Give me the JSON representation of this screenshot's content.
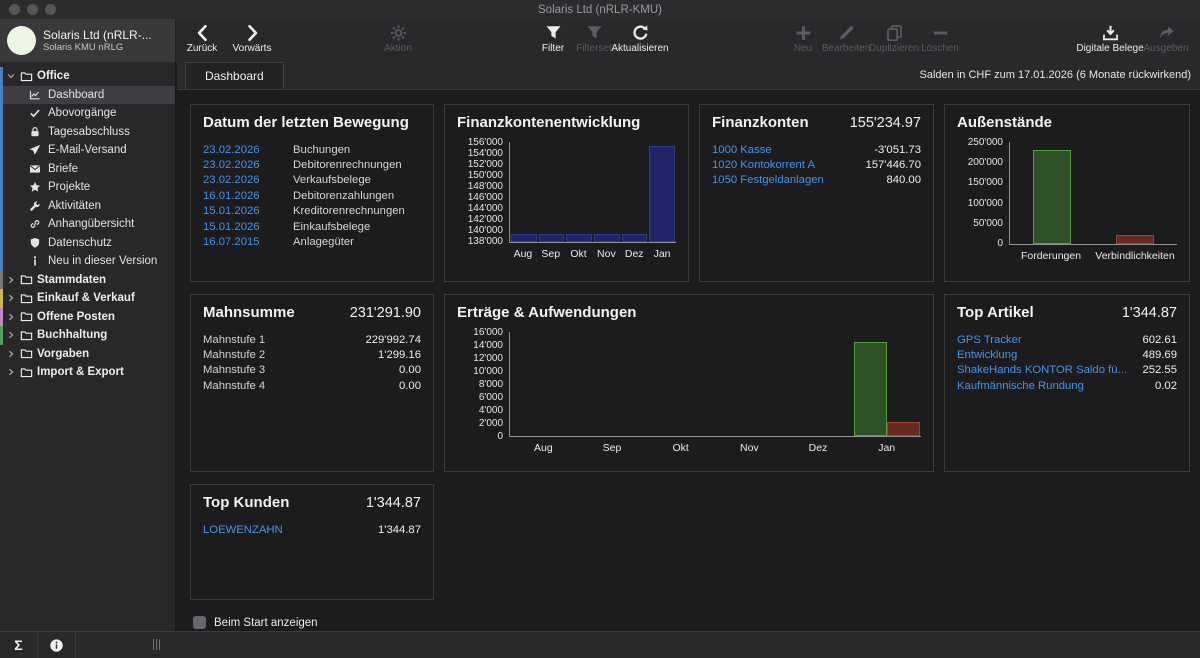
{
  "window": {
    "title": "Solaris Ltd  (nRLR-KMU)"
  },
  "header": {
    "company": "Solaris Ltd  (nRLR-...",
    "company_sub": "Solaris KMU nRLG"
  },
  "toolbar": {
    "items": [
      {
        "label": "Zurück",
        "icon": "back",
        "enabled": true
      },
      {
        "label": "Vorwärts",
        "icon": "forward",
        "enabled": true
      },
      {
        "label": "Aktion",
        "icon": "gear",
        "enabled": false
      },
      {
        "label": "Filter",
        "icon": "funnel",
        "enabled": true
      },
      {
        "label": "Filterset",
        "icon": "funnel",
        "enabled": false
      },
      {
        "label": "Aktualisieren",
        "icon": "refresh",
        "enabled": true
      },
      {
        "label": "Neu",
        "icon": "plus",
        "enabled": false
      },
      {
        "label": "Bearbeiten",
        "icon": "pencil",
        "enabled": false
      },
      {
        "label": "Duplizieren",
        "icon": "copy",
        "enabled": false
      },
      {
        "label": "Löschen",
        "icon": "minus",
        "enabled": false
      },
      {
        "label": "Digitale Belege",
        "icon": "tray-download",
        "enabled": true
      },
      {
        "label": "Ausgeben",
        "icon": "share",
        "enabled": false
      }
    ]
  },
  "tabs": {
    "active": "Dashboard",
    "info": "Salden in CHF zum 17.01.2026 (6 Monate rückwirkend)"
  },
  "sidebar": {
    "sections": [
      {
        "label": "Office",
        "strip": "#4a80c4",
        "expanded": true,
        "children": [
          {
            "label": "Dashboard",
            "icon": "chart-line",
            "selected": true
          },
          {
            "label": "Abovorgänge",
            "icon": "check"
          },
          {
            "label": "Tagesabschluss",
            "icon": "lock"
          },
          {
            "label": "E-Mail-Versand",
            "icon": "paper-plane"
          },
          {
            "label": "Briefe",
            "icon": "envelope"
          },
          {
            "label": "Projekte",
            "icon": "star"
          },
          {
            "label": "Aktivitäten",
            "icon": "wrench"
          },
          {
            "label": "Anhangübersicht",
            "icon": "link"
          },
          {
            "label": "Datenschutz",
            "icon": "shield"
          },
          {
            "label": "Neu in dieser Version",
            "icon": "info"
          }
        ]
      },
      {
        "label": "Stammdaten",
        "strip": "#767676",
        "expanded": false,
        "children": []
      },
      {
        "label": "Einkauf & Verkauf",
        "strip": "#d2b64a",
        "expanded": false,
        "children": []
      },
      {
        "label": "Offene Posten",
        "strip": "#c486c4",
        "expanded": false,
        "children": []
      },
      {
        "label": "Buchhaltung",
        "strip": "#53a253",
        "expanded": false,
        "children": []
      },
      {
        "label": "Vorgaben",
        "strip": null,
        "expanded": false,
        "children": []
      },
      {
        "label": "Import & Export",
        "strip": null,
        "expanded": false,
        "children": []
      }
    ]
  },
  "panels": {
    "letzte_bewegung": {
      "title": "Datum der letzten Bewegung",
      "rows": [
        {
          "label": "23.02.2026",
          "value": "Buchungen",
          "link": true
        },
        {
          "label": "23.02.2026",
          "value": "Debitorenrechnungen",
          "link": true
        },
        {
          "label": "23.02.2026",
          "value": "Verkaufsbelege",
          "link": true
        },
        {
          "label": "16.01.2026",
          "value": "Debitorenzahlungen",
          "link": true
        },
        {
          "label": "15.01.2026",
          "value": "Kreditorenrechnungen",
          "link": true
        },
        {
          "label": "15.01.2026",
          "value": "Einkaufsbelege",
          "link": true
        },
        {
          "label": "16.07.2015",
          "value": "Anlagegüter",
          "link": true
        }
      ]
    },
    "finanzkonten": {
      "title": "Finanzkonten",
      "total": "155'234.97",
      "rows": [
        {
          "label": "1000 Kasse",
          "value": "-3'051.73",
          "link": true
        },
        {
          "label": "1020 Kontokorrent A",
          "value": "157'446.70",
          "link": true
        },
        {
          "label": "1050 Festgeldanlagen",
          "value": "840.00",
          "link": true
        }
      ]
    },
    "mahnsumme": {
      "title": "Mahnsumme",
      "total": "231'291.90",
      "rows": [
        {
          "label": "Mahnstufe 1",
          "value": "229'992.74",
          "link": false
        },
        {
          "label": "Mahnstufe 2",
          "value": "1'299.16",
          "link": false
        },
        {
          "label": "Mahnstufe 3",
          "value": "0.00",
          "link": false
        },
        {
          "label": "Mahnstufe 4",
          "value": "0.00",
          "link": false
        }
      ]
    },
    "top_artikel": {
      "title": "Top Artikel",
      "total": "1'344.87",
      "rows": [
        {
          "label": "GPS Tracker",
          "value": "602.61",
          "link": true
        },
        {
          "label": "Entwicklung",
          "value": "489.69",
          "link": true
        },
        {
          "label": "ShakeHands KONTOR Saldo fü...",
          "value": "252.55",
          "link": true
        },
        {
          "label": "Kaufmännische Rundung",
          "value": "0.02",
          "link": true
        }
      ]
    },
    "top_kunden": {
      "title": "Top Kunden",
      "total": "1'344.87",
      "rows": [
        {
          "label": "LOEWENZAHN",
          "value": "1'344.87",
          "link": true
        }
      ]
    }
  },
  "chart_data": [
    {
      "type": "bar",
      "title": "Finanzkontenentwicklung",
      "categories": [
        "Aug",
        "Sep",
        "Okt",
        "Nov",
        "Dez",
        "Jan"
      ],
      "series": [
        {
          "name": "Saldo",
          "values": [
            139400,
            139400,
            139400,
            139400,
            139400,
            155235
          ],
          "fill": "#1e2665",
          "stroke": "#2e3d8e"
        }
      ],
      "ylim": [
        138000,
        156000
      ],
      "yticks": [
        "156'000",
        "154'000",
        "152'000",
        "150'000",
        "148'000",
        "146'000",
        "144'000",
        "142'000",
        "140'000",
        "138'000"
      ],
      "xlabel": "",
      "ylabel": "",
      "legend": "none",
      "grid": false
    },
    {
      "type": "bar",
      "title": "Außenstände",
      "categories": [
        "Forderungen",
        "Verbindlichkeiten"
      ],
      "series": [
        {
          "name": "Betrag",
          "values": [
            231292,
            21000
          ],
          "fills": [
            "#2e5128",
            "#67291e"
          ],
          "strokes": [
            "#56a13e",
            "#a04030"
          ]
        }
      ],
      "ylim": [
        0,
        250000
      ],
      "yticks": [
        "250'000",
        "200'000",
        "150'000",
        "100'000",
        "50'000",
        "0"
      ],
      "xlabel": "",
      "ylabel": "",
      "legend": "none",
      "grid": false
    },
    {
      "type": "bar",
      "title": "Erträge & Aufwendungen",
      "categories": [
        "Aug",
        "Sep",
        "Okt",
        "Nov",
        "Dez",
        "Jan"
      ],
      "series": [
        {
          "name": "Erträge",
          "values": [
            0,
            0,
            0,
            0,
            0,
            14400
          ],
          "fill": "#2e5128",
          "stroke": "#56a13e"
        },
        {
          "name": "Aufwendungen",
          "values": [
            0,
            0,
            0,
            0,
            0,
            2200
          ],
          "fill": "#67291e",
          "stroke": "#a04030"
        }
      ],
      "ylim": [
        0,
        16000
      ],
      "yticks": [
        "16'000",
        "14'000",
        "12'000",
        "10'000",
        "8'000",
        "6'000",
        "4'000",
        "2'000",
        "0"
      ],
      "xlabel": "",
      "ylabel": "",
      "legend": "none",
      "grid": false
    }
  ],
  "footer": {
    "checkbox_label": "Beim Start anzeigen",
    "checked": false
  },
  "statusbar": {
    "sigma": "Σ"
  },
  "colors": {
    "link": "#4793e8",
    "bar_blue_fill": "#1e2665",
    "bar_green_fill": "#2e5128",
    "bar_red_fill": "#67291e"
  }
}
